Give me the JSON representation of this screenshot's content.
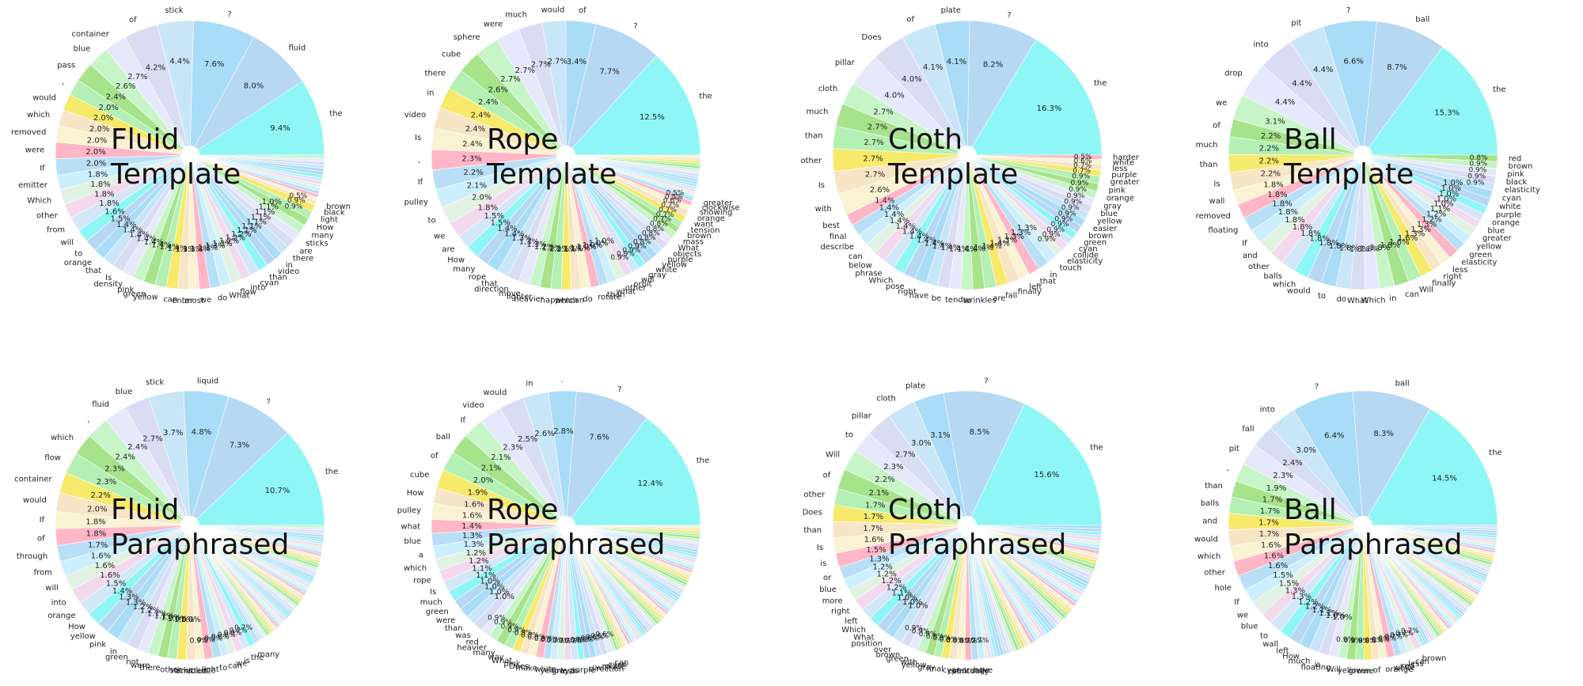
{
  "palette": [
    "#8ff6f6",
    "#b6d8f3",
    "#a9dcf7",
    "#c9e6f8",
    "#d9ddf4",
    "#e6e9fb",
    "#c8f5c8",
    "#a6e38a",
    "#b4f0b4",
    "#f7e96a",
    "#f7e5c7",
    "#f9f2d3",
    "#ffb6c6",
    "#b9dff7",
    "#cdeffd",
    "#e2f2e2",
    "#f3d9ee",
    "#d3e7f9"
  ],
  "chart_data": [
    {
      "type": "pie",
      "title_line1": "Fluid",
      "title_line2": "Template",
      "labels": [
        "the",
        "fluid",
        "?",
        "stick",
        "of",
        "container",
        "blue",
        "pass",
        ",",
        "would",
        "which",
        "removed",
        "were",
        "If",
        "emitter",
        "Which",
        "other",
        "from",
        "will",
        "to",
        "orange",
        "that",
        "Is",
        "density",
        "pink",
        "green",
        "yellow",
        "can",
        "enter",
        "most",
        "we",
        "do",
        "What",
        "flow",
        "into",
        "cyan",
        "than",
        "video",
        "in",
        "there",
        "are",
        "sticks",
        "many",
        "How",
        "light",
        "black",
        "brown"
      ],
      "values": [
        9.4,
        8.0,
        7.6,
        4.4,
        4.2,
        2.7,
        2.6,
        2.4,
        2.0,
        2.0,
        2.0,
        2.0,
        2.0,
        2.0,
        1.8,
        1.8,
        1.8,
        1.8,
        1.6,
        1.5,
        1.4,
        1.4,
        1.4,
        1.4,
        1.4,
        1.4,
        1.4,
        1.4,
        1.3,
        1.3,
        1.3,
        1.3,
        1.3,
        1.3,
        1.2,
        1.2,
        1.2,
        1.1,
        1.1,
        1.1,
        1.1,
        1.1,
        1.1,
        1.0,
        0.9,
        0.9,
        0.5
      ],
      "other_count": 14,
      "other_value": 0.4
    },
    {
      "type": "pie",
      "title_line1": "Rope",
      "title_line2": "Template",
      "labels": [
        "the",
        "?",
        "of",
        "would",
        "much",
        "were",
        "sphere",
        "cube",
        "there",
        "in",
        "video",
        "Is",
        ",",
        "If",
        "pulley",
        "to",
        "we",
        "are",
        "How",
        "many",
        "rope",
        "that",
        "direction",
        "move",
        "lighter",
        "heavier",
        "happen",
        "which",
        "can",
        "do",
        "rotate",
        "than",
        "what",
        "other",
        "orbit",
        "will",
        "gray",
        "white",
        "yellow",
        "purple",
        "objects",
        "What",
        "mass",
        "brown",
        "tension",
        "want",
        "orange",
        "showing",
        "clockwise",
        "greater"
      ],
      "values": [
        12.5,
        7.7,
        3.4,
        2.7,
        2.7,
        2.7,
        2.7,
        2.6,
        2.4,
        2.4,
        2.4,
        2.4,
        2.3,
        2.2,
        2.1,
        2.0,
        1.8,
        1.5,
        1.5,
        1.4,
        1.4,
        1.3,
        1.3,
        1.3,
        1.2,
        1.2,
        1.2,
        1.1,
        1.1,
        1.1,
        1.0,
        1.0,
        1.0,
        1.0,
        0.9,
        0.9,
        0.9,
        0.9,
        0.8,
        0.8,
        0.8,
        0.8,
        0.8,
        0.7,
        0.7,
        0.7,
        0.7,
        0.6,
        0.5,
        0.5
      ],
      "other_count": 16,
      "other_value": 0.3
    },
    {
      "type": "pie",
      "title_line1": "Cloth",
      "title_line2": "Template",
      "labels": [
        "the",
        "?",
        "plate",
        "of",
        "Does",
        "pillar",
        "cloth",
        "much",
        "than",
        "other",
        "Is",
        "with",
        "best",
        "final",
        "describe",
        "can",
        "below",
        "phrase",
        "Which",
        "pose",
        "right",
        "have",
        "be",
        "tend",
        "to",
        "wrinkles",
        "are",
        "fall",
        "finally",
        "left",
        "that",
        "in",
        "touch",
        "elasticity",
        "collide",
        "cyan",
        "green",
        "brown",
        "easier",
        "yellow",
        "blue",
        "gray",
        "orange",
        "pink",
        "greater",
        "purple",
        "less",
        "white",
        "harder"
      ],
      "values": [
        16.3,
        8.2,
        4.1,
        4.1,
        4.0,
        4.0,
        2.7,
        2.7,
        2.7,
        2.7,
        2.7,
        2.6,
        1.4,
        1.4,
        1.4,
        1.4,
        1.4,
        1.4,
        1.4,
        1.4,
        1.4,
        1.4,
        1.4,
        1.4,
        1.4,
        1.4,
        1.4,
        1.4,
        1.4,
        1.3,
        1.3,
        1.3,
        1.3,
        0.9,
        0.9,
        0.9,
        0.9,
        0.9,
        0.9,
        0.9,
        0.9,
        0.9,
        0.9,
        0.9,
        0.9,
        0.7,
        0.7,
        0.6,
        0.5
      ],
      "other_count": 0,
      "other_value": 0
    },
    {
      "type": "pie",
      "title_line1": "Ball",
      "title_line2": "Template",
      "labels": [
        "the",
        "ball",
        "?",
        "pit",
        "into",
        "drop",
        "we",
        "of",
        "much",
        "than",
        "Is",
        "wall",
        "removed",
        "floating",
        "If",
        "and",
        "other",
        "balls",
        "which",
        "would",
        "to",
        "do",
        "What",
        "Which",
        "in",
        "can",
        "Will",
        "finally",
        "right",
        "less",
        "elasticity",
        "green",
        "yellow",
        "greater",
        "blue",
        "orange",
        "purple",
        "white",
        "cyan",
        "elasticity",
        "black",
        "pink",
        "brown",
        "red"
      ],
      "values": [
        15.3,
        8.7,
        6.6,
        4.4,
        4.4,
        4.4,
        3.1,
        2.2,
        2.2,
        2.2,
        2.2,
        1.8,
        1.8,
        1.8,
        1.8,
        1.8,
        1.8,
        1.8,
        1.8,
        1.8,
        1.8,
        1.8,
        1.8,
        1.8,
        1.8,
        1.8,
        1.6,
        1.6,
        1.3,
        1.3,
        1.3,
        1.2,
        1.2,
        1.1,
        1.0,
        1.0,
        1.0,
        1.0,
        1.0,
        0.9,
        0.9,
        0.9,
        0.9,
        0.8
      ],
      "other_count": 0,
      "other_value": 0
    },
    {
      "type": "pie",
      "title_line1": "Fluid",
      "title_line2": "Paraphrased",
      "labels": [
        "the",
        "?",
        "liquid",
        "stick",
        "blue",
        "fluid",
        ",",
        "which",
        "flow",
        "container",
        "would",
        "If",
        "of",
        "through",
        "from",
        "will",
        "into",
        "orange",
        "How",
        "yellow",
        "pink",
        "in",
        "green",
        "not",
        "were",
        "there",
        "other",
        "sticks",
        "emitted",
        "volume",
        "light",
        "to",
        "can",
        "we",
        "is",
        "the",
        "many"
      ],
      "values": [
        10.7,
        7.3,
        4.8,
        3.7,
        2.7,
        2.4,
        2.4,
        2.3,
        2.3,
        2.2,
        2.0,
        1.8,
        1.8,
        1.7,
        1.6,
        1.6,
        1.6,
        1.5,
        1.4,
        1.3,
        1.3,
        1.2,
        1.2,
        1.1,
        1.1,
        1.0,
        1.0,
        1.0,
        1.0,
        0.9,
        0.9,
        0.9,
        0.8,
        0.8,
        0.8,
        0.7,
        0.7
      ],
      "other_count": 60,
      "other_value": 0.25
    },
    {
      "type": "pie",
      "title_line1": "Rope",
      "title_line2": "Paraphrased",
      "labels": [
        "the",
        "?",
        ".",
        "in",
        "would",
        "video",
        "If",
        "ball",
        "of",
        "cube",
        "How",
        "pulley",
        "what",
        "blue",
        "a",
        "which",
        "rope",
        "Is",
        "much",
        "green",
        "were",
        "than",
        "was",
        "red",
        "heavier",
        "many",
        "way",
        "What",
        "pink",
        "Does",
        "make",
        "white",
        "yellow",
        "gray",
        "less",
        "is",
        "purple",
        "direction",
        "will",
        "rotate",
        "cyan",
        "can"
      ],
      "values": [
        12.4,
        7.6,
        2.8,
        2.6,
        2.5,
        2.3,
        2.1,
        2.1,
        2.0,
        1.9,
        1.6,
        1.6,
        1.4,
        1.3,
        1.3,
        1.2,
        1.2,
        1.1,
        1.1,
        1.0,
        1.0,
        1.0,
        1.0,
        0.9,
        0.9,
        0.9,
        0.9,
        0.8,
        0.8,
        0.8,
        0.8,
        0.7,
        0.7,
        0.7,
        0.7,
        0.7,
        0.6,
        0.6,
        0.6,
        0.6,
        0.6,
        0.6
      ],
      "other_count": 60,
      "other_value": 0.27
    },
    {
      "type": "pie",
      "title_line1": "Cloth",
      "title_line2": "Paraphrased",
      "labels": [
        "the",
        "?",
        "plate",
        "cloth",
        "pillar",
        "to",
        "Will",
        "of",
        "other",
        "Does",
        "than",
        "Is",
        "is",
        "or",
        "blue",
        "more",
        "right",
        "left",
        "Which",
        "What",
        "position",
        "over",
        "brown",
        "green",
        "with",
        "yellow",
        "gray",
        "final",
        "cyan",
        "pink",
        "eventually",
        "orange",
        "have"
      ],
      "values": [
        15.6,
        8.5,
        3.1,
        3.0,
        2.7,
        2.3,
        2.2,
        2.1,
        1.7,
        1.7,
        1.7,
        1.6,
        1.5,
        1.3,
        1.2,
        1.2,
        1.2,
        1.2,
        1.1,
        1.0,
        1.0,
        1.0,
        0.9,
        0.9,
        0.9,
        0.9,
        0.8,
        0.8,
        0.8,
        0.8,
        0.7,
        0.7,
        0.7
      ],
      "other_count": 60,
      "other_value": 0.33
    },
    {
      "type": "pie",
      "title_line1": "Ball",
      "title_line2": "Paraphrased",
      "labels": [
        "the",
        "ball",
        "?",
        "into",
        "fall",
        "pit",
        ",",
        "than",
        "balls",
        "and",
        "would",
        "which",
        "other",
        "hole",
        "If",
        "we",
        "blue",
        "to",
        "wall",
        "left",
        "How",
        "much",
        "is",
        "floating",
        "Will",
        "yellow",
        "green",
        "we",
        "of",
        "orange",
        "white",
        "red",
        "less",
        "can",
        "brown"
      ],
      "values": [
        14.5,
        8.3,
        6.4,
        3.0,
        2.4,
        2.3,
        1.9,
        1.7,
        1.7,
        1.7,
        1.7,
        1.6,
        1.6,
        1.6,
        1.5,
        1.5,
        1.3,
        1.3,
        1.2,
        1.2,
        1.1,
        1.1,
        1.0,
        1.0,
        0.9,
        0.9,
        0.9,
        0.8,
        0.8,
        0.8,
        0.8,
        0.7,
        0.7,
        0.7,
        0.7
      ],
      "other_count": 60,
      "other_value": 0.26
    }
  ]
}
